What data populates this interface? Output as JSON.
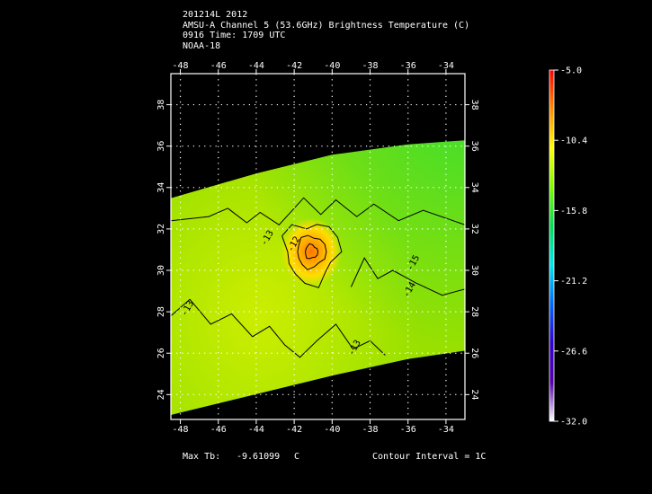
{
  "header": {
    "line1": "201214L 2012",
    "line2": "AMSU-A Channel 5 (53.6GHz) Brightness Temperature (C)",
    "line3": "0916 Time: 1709 UTC",
    "line4": "NOAA-18"
  },
  "footer": {
    "max_label": "Max Tb:",
    "max_value": "-9.61099",
    "max_unit": "C",
    "contour_interval": "Contour Interval = 1C"
  },
  "chart_data": {
    "type": "heatmap",
    "title": "AMSU-A Channel 5 (53.6GHz) Brightness Temperature (C)",
    "x_ticks": [
      "-48",
      "-46",
      "-44",
      "-42",
      "-40",
      "-38",
      "-36",
      "-34"
    ],
    "y_ticks": [
      "24",
      "26",
      "28",
      "30",
      "32",
      "34",
      "36",
      "38"
    ],
    "xlim": [
      -48.5,
      -33.0
    ],
    "ylim": [
      22.8,
      39.5
    ],
    "grid": true,
    "swath_polygon_lonlat": [
      [
        -48.5,
        33.5
      ],
      [
        -44,
        34.7
      ],
      [
        -40,
        35.6
      ],
      [
        -36,
        36.1
      ],
      [
        -33,
        36.3
      ],
      [
        -33,
        26.1
      ],
      [
        -36,
        25.7
      ],
      [
        -40,
        24.9
      ],
      [
        -44,
        24.0
      ],
      [
        -48.5,
        23.0
      ]
    ],
    "warm_core": {
      "lon": -41.1,
      "lat": 30.9,
      "max_tb": -9.61099
    },
    "contour_labels": [
      {
        "text": "-13",
        "lon": -43.3,
        "lat": 31.5
      },
      {
        "text": "-12",
        "lon": -41.9,
        "lat": 31.2
      },
      {
        "text": "-15",
        "lon": -35.6,
        "lat": 30.3
      },
      {
        "text": "-14",
        "lon": -35.8,
        "lat": 29.0
      },
      {
        "text": "-13",
        "lon": -47.5,
        "lat": 28.1
      },
      {
        "text": "-13",
        "lon": -38.7,
        "lat": 26.2
      }
    ],
    "colorbar": {
      "ticks": [
        "-5.0",
        "-10.4",
        "-15.8",
        "-21.2",
        "-26.6",
        "-32.0"
      ],
      "min": -32.0,
      "max": -5.0,
      "colors": [
        "#ff0000",
        "#ff8c00",
        "#ffff00",
        "#7cfc00",
        "#00dd55",
        "#00e5ee",
        "#0066ff",
        "#3300cc",
        "#5500aa",
        "#ffffff"
      ]
    },
    "field_colors": {
      "background": "#99e000",
      "northeast": "#33dd33",
      "southwest": "#ccee00",
      "core_outer": "#ffdd00",
      "core_mid": "#ffaa00",
      "core_inner": "#ff7700"
    }
  }
}
